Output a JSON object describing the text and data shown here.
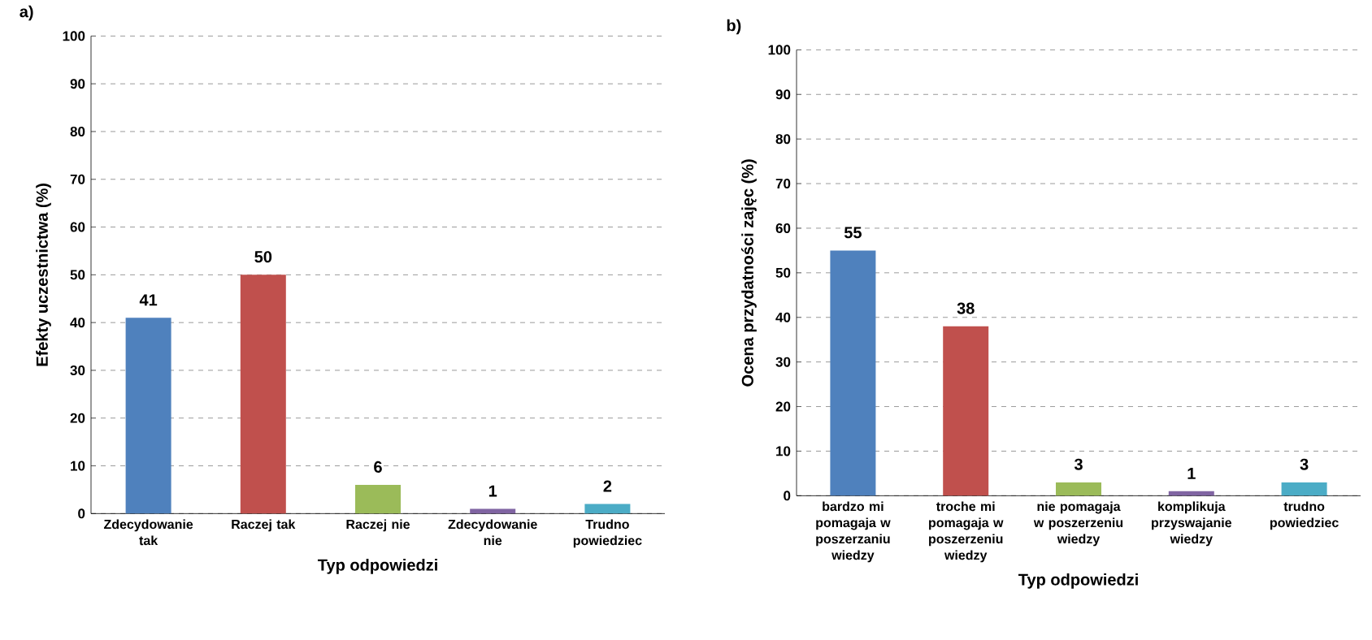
{
  "chart_data": [
    {
      "type": "bar",
      "title": "a)",
      "xlabel": "Typ odpowiedzi",
      "ylabel": "Efekty uczestnictwa (%)",
      "categories": [
        "Zdecydowanie tak",
        "Raczej tak",
        "Raczej nie",
        "Zdecydowanie nie",
        "Trudno powiedziec"
      ],
      "values": [
        41,
        50,
        6,
        1,
        2
      ],
      "colors": [
        "#4f81bd",
        "#c0504d",
        "#9bbb59",
        "#8064a2",
        "#4bacc6"
      ],
      "ylim": [
        0,
        100
      ],
      "yticks": [
        0,
        10,
        20,
        30,
        40,
        50,
        60,
        70,
        80,
        90,
        100
      ],
      "grid": "y",
      "data_labels": true
    },
    {
      "type": "bar",
      "title": "b)",
      "xlabel": "Typ odpowiedzi",
      "ylabel": "Ocena przydatności zajęc (%)",
      "categories": [
        "bardzo mi pomagaja w poszerzaniu wiedzy",
        "troche mi pomagaja w poszerzeniu wiedzy",
        "nie pomagaja w poszerzeniu wiedzy",
        "komplikuja przyswajanie wiedzy",
        "trudno powiedziec"
      ],
      "values": [
        55,
        38,
        3,
        1,
        3
      ],
      "colors": [
        "#4f81bd",
        "#c0504d",
        "#9bbb59",
        "#8064a2",
        "#4bacc6"
      ],
      "ylim": [
        0,
        100
      ],
      "yticks": [
        0,
        10,
        20,
        30,
        40,
        50,
        60,
        70,
        80,
        90,
        100
      ],
      "grid": "y",
      "data_labels": true
    }
  ]
}
